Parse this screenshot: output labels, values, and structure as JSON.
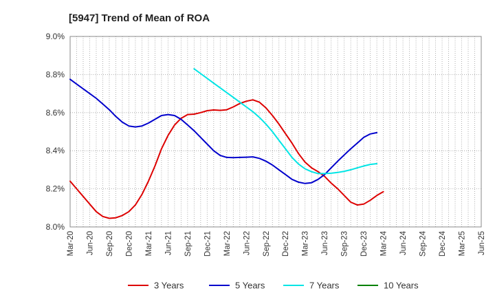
{
  "chart_data": {
    "type": "line",
    "title": "[5947]  Trend of Mean of ROA",
    "xlabel": "",
    "ylabel": "",
    "ylim": [
      8.0,
      9.0
    ],
    "y_ticks": [
      8.0,
      8.2,
      8.4,
      8.6,
      8.8,
      9.0
    ],
    "y_tick_labels": [
      "8.0%",
      "8.2%",
      "8.4%",
      "8.6%",
      "8.8%",
      "9.0%"
    ],
    "x_tick_labels": [
      "Mar-20",
      "Jun-20",
      "Sep-20",
      "Dec-20",
      "Mar-21",
      "Jun-21",
      "Sep-21",
      "Dec-21",
      "Mar-22",
      "Jun-22",
      "Sep-22",
      "Dec-22",
      "Mar-23",
      "Jun-23",
      "Sep-23",
      "Dec-23",
      "Mar-24",
      "Jun-24",
      "Sep-24",
      "Dec-24",
      "Mar-25",
      "Jun-25"
    ],
    "grid": true,
    "legend_position": "bottom",
    "series": [
      {
        "name": "3 Years",
        "color": "#dd0000",
        "values": [
          8.24,
          8.2,
          8.16,
          8.12,
          8.08,
          8.055,
          8.045,
          8.048,
          8.06,
          8.08,
          8.115,
          8.17,
          8.24,
          8.32,
          8.41,
          8.48,
          8.535,
          8.57,
          8.59,
          8.592,
          8.6,
          8.61,
          8.614,
          8.612,
          8.615,
          8.63,
          8.648,
          8.66,
          8.667,
          8.655,
          8.625,
          8.585,
          8.54,
          8.49,
          8.44,
          8.385,
          8.34,
          8.31,
          8.29,
          8.265,
          8.23,
          8.2,
          8.165,
          8.13,
          8.115,
          8.12,
          8.14,
          8.165,
          8.185
        ]
      },
      {
        "name": "5 Years",
        "color": "#0000cc",
        "values": [
          8.775,
          8.75,
          8.725,
          8.7,
          8.675,
          8.645,
          8.615,
          8.58,
          8.55,
          8.53,
          8.525,
          8.53,
          8.545,
          8.565,
          8.585,
          8.59,
          8.585,
          8.565,
          8.535,
          8.505,
          8.47,
          8.435,
          8.4,
          8.375,
          8.365,
          8.364,
          8.365,
          8.366,
          8.368,
          8.36,
          8.345,
          8.325,
          8.3,
          8.275,
          8.25,
          8.235,
          8.228,
          8.232,
          8.25,
          8.275,
          8.31,
          8.345,
          8.378,
          8.41,
          8.44,
          8.47,
          8.488,
          8.495
        ]
      },
      {
        "name": "7 Years",
        "color": "#00e5e5",
        "values": [
          null,
          null,
          null,
          null,
          null,
          null,
          null,
          null,
          null,
          null,
          null,
          null,
          null,
          null,
          null,
          null,
          null,
          null,
          null,
          8.83,
          8.805,
          8.78,
          8.755,
          8.73,
          8.705,
          8.68,
          8.655,
          8.63,
          8.605,
          8.575,
          8.54,
          8.5,
          8.455,
          8.41,
          8.365,
          8.33,
          8.305,
          8.29,
          8.28,
          8.28,
          8.282,
          8.286,
          8.292,
          8.3,
          8.31,
          8.32,
          8.328,
          8.332
        ]
      },
      {
        "name": "10 Years",
        "color": "#008000",
        "values": []
      }
    ]
  }
}
